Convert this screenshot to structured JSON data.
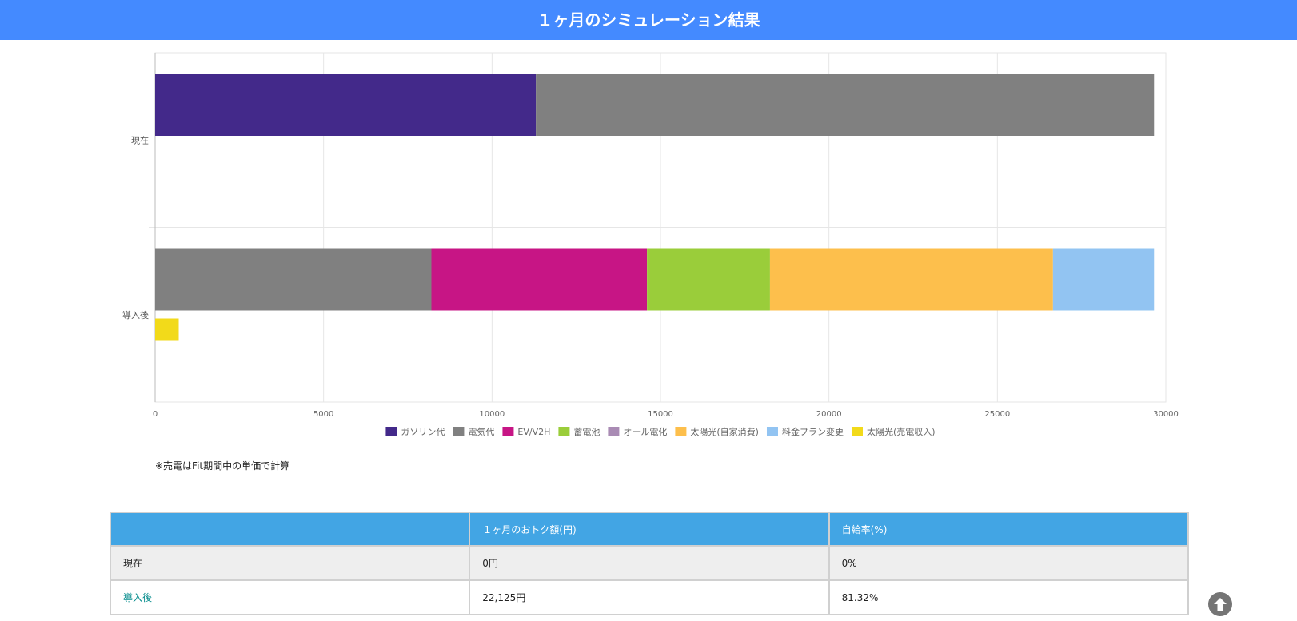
{
  "header": {
    "title": "１ヶ月のシミュレーション結果"
  },
  "chart_data": {
    "type": "bar",
    "orientation": "horizontal",
    "stacked": true,
    "categories": [
      "現在",
      "導入後"
    ],
    "xlim": [
      0,
      30000
    ],
    "xticks": [
      0,
      5000,
      10000,
      15000,
      20000,
      25000,
      30000
    ],
    "grid": true,
    "legend_position": "bottom",
    "series": [
      {
        "name": "ガソリン代",
        "color": "#43298a",
        "values": [
          11300,
          0
        ],
        "stack": "main"
      },
      {
        "name": "電気代",
        "color": "#808080",
        "values": [
          18350,
          8200
        ],
        "stack": "main"
      },
      {
        "name": "EV/V2H",
        "color": "#c71585",
        "values": [
          0,
          6400
        ],
        "stack": "main"
      },
      {
        "name": "蓄電池",
        "color": "#9acd3a",
        "values": [
          0,
          3650
        ],
        "stack": "main"
      },
      {
        "name": "オール電化",
        "color": "#a98bb4",
        "values": [
          0,
          0
        ],
        "stack": "main"
      },
      {
        "name": "太陽光(自家消費)",
        "color": "#fdbf4c",
        "values": [
          0,
          8400
        ],
        "stack": "main"
      },
      {
        "name": "料金プラン変更",
        "color": "#92c4f2",
        "values": [
          0,
          3000
        ],
        "stack": "main"
      },
      {
        "name": "太陽光(売電収入)",
        "color": "#f2da1a",
        "values": [
          0,
          700
        ],
        "stack": "sub"
      }
    ]
  },
  "note": "※売電はFit期間中の単価で計算",
  "table": {
    "headers": [
      "",
      "１ヶ月のおトク額(円)",
      "自給率(%)"
    ],
    "rows": [
      {
        "label": "現在",
        "amount": "0円",
        "rate": "0%"
      },
      {
        "label": "導入後",
        "amount": "22,125円",
        "rate": "81.32%"
      }
    ]
  },
  "scroll_top": {
    "icon": "arrow-up-circle-icon"
  }
}
